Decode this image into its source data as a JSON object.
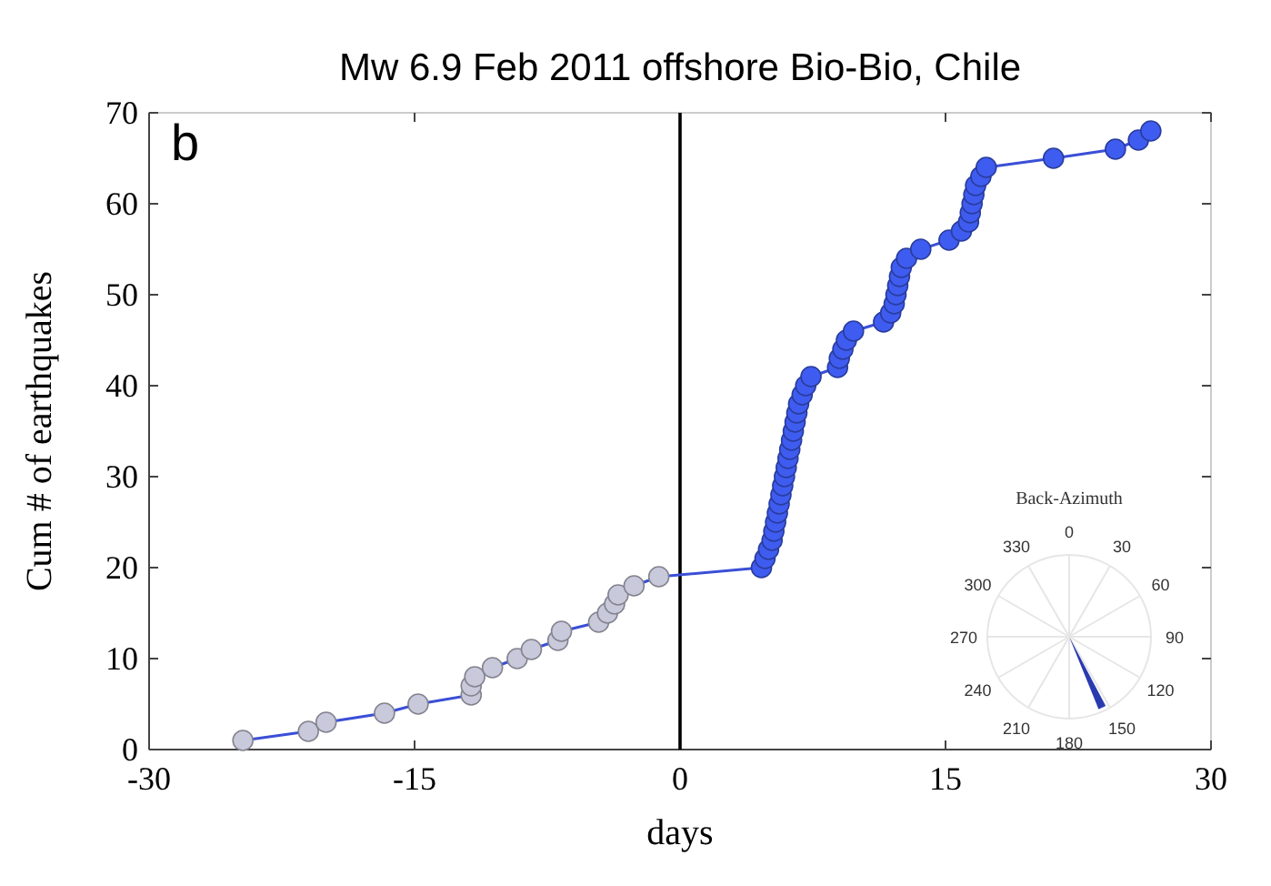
{
  "chart_data": [
    {
      "type": "line",
      "title": "Mw 6.9 Feb 2011 offshore Bio-Bio, Chile",
      "xlabel": "days",
      "ylabel": "Cum # of earthquakes",
      "annotations": [
        "b"
      ],
      "xlim": [
        -30,
        30
      ],
      "xticks": [
        -30,
        -15,
        0,
        15,
        30
      ],
      "ylim": [
        0,
        70
      ],
      "yticks": [
        0,
        10,
        20,
        30,
        40,
        50,
        60,
        70
      ],
      "grid": false,
      "marker": "circle",
      "ref_lines": [
        {
          "axis": "x",
          "value": 0,
          "color": "#000000"
        }
      ],
      "series": [
        {
          "type": "line",
          "marker": "none",
          "color": "#3a4fd6",
          "x": [
            -24.7,
            -21.0,
            -20.0,
            -16.7,
            -14.8,
            -11.8,
            -11.8,
            -11.6,
            -10.6,
            -9.2,
            -8.4,
            -6.9,
            -6.7,
            -4.6,
            -4.1,
            -3.7,
            -3.5,
            -2.6,
            -1.2,
            4.6,
            4.8,
            5.0,
            5.2,
            5.3,
            5.4,
            5.5,
            5.6,
            5.7,
            5.8,
            5.9,
            6.0,
            6.1,
            6.2,
            6.3,
            6.4,
            6.5,
            6.6,
            6.7,
            6.9,
            7.1,
            7.4,
            8.9,
            9.0,
            9.2,
            9.4,
            9.8,
            11.5,
            11.9,
            12.1,
            12.2,
            12.3,
            12.4,
            12.5,
            12.8,
            13.6,
            15.2,
            15.9,
            16.3,
            16.4,
            16.5,
            16.6,
            16.7,
            17.0,
            17.3,
            21.1,
            24.6,
            25.9,
            26.6
          ],
          "values": [
            1,
            2,
            3,
            4,
            5,
            6,
            7,
            8,
            9,
            10,
            11,
            12,
            13,
            14,
            15,
            16,
            17,
            18,
            19,
            20,
            21,
            22,
            23,
            24,
            25,
            26,
            27,
            28,
            29,
            30,
            31,
            32,
            33,
            34,
            35,
            36,
            37,
            38,
            39,
            40,
            41,
            42,
            43,
            44,
            45,
            46,
            47,
            48,
            49,
            50,
            51,
            52,
            53,
            54,
            55,
            56,
            57,
            58,
            59,
            60,
            61,
            62,
            63,
            64,
            65,
            66,
            67,
            68
          ]
        },
        {
          "type": "scatter",
          "color": "#c9c9dc",
          "x": [
            -24.7,
            -21.0,
            -20.0,
            -16.7,
            -14.8,
            -11.8,
            -11.8,
            -11.6,
            -10.6,
            -9.2,
            -8.4,
            -6.9,
            -6.7,
            -4.6,
            -4.1,
            -3.7,
            -3.5,
            -2.6,
            -1.2
          ],
          "values": [
            1,
            2,
            3,
            4,
            5,
            6,
            7,
            8,
            9,
            10,
            11,
            12,
            13,
            14,
            15,
            16,
            17,
            18,
            19
          ]
        },
        {
          "type": "scatter",
          "color": "#3f5cf0",
          "x": [
            4.6,
            4.8,
            5.0,
            5.2,
            5.3,
            5.4,
            5.5,
            5.6,
            5.7,
            5.8,
            5.9,
            6.0,
            6.1,
            6.2,
            6.3,
            6.4,
            6.5,
            6.6,
            6.7,
            6.9,
            7.1,
            7.4,
            8.9,
            9.0,
            9.2,
            9.4,
            9.8,
            11.5,
            11.9,
            12.1,
            12.2,
            12.3,
            12.4,
            12.5,
            12.8,
            13.6,
            15.2,
            15.9,
            16.3,
            16.4,
            16.5,
            16.6,
            16.7,
            17.0,
            17.3,
            21.1,
            24.6,
            25.9,
            26.6
          ],
          "values": [
            20,
            21,
            22,
            23,
            24,
            25,
            26,
            27,
            28,
            29,
            30,
            31,
            32,
            33,
            34,
            35,
            36,
            37,
            38,
            39,
            40,
            41,
            42,
            43,
            44,
            45,
            46,
            47,
            48,
            49,
            50,
            51,
            52,
            53,
            54,
            55,
            56,
            57,
            58,
            59,
            60,
            61,
            62,
            63,
            64,
            65,
            66,
            67,
            68
          ]
        }
      ]
    },
    {
      "type": "other",
      "title": "Back-Azimuth",
      "categories": [
        "0",
        "30",
        "60",
        "90",
        "120",
        "150",
        "180",
        "210",
        "240",
        "270",
        "300",
        "330"
      ],
      "color": "#2a3bb0"
    }
  ]
}
